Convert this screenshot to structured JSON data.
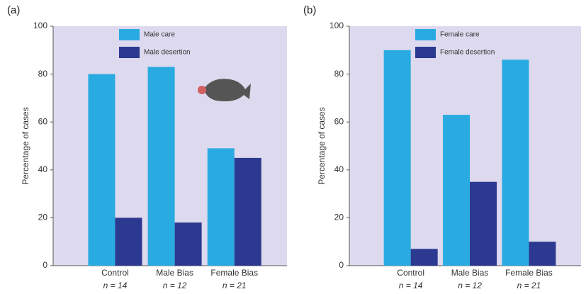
{
  "chart_data": [
    {
      "type": "bar",
      "panel_label": "(a)",
      "ylabel": "Percentage of cases",
      "categories": [
        "Control",
        "Male Bias",
        "Female Bias"
      ],
      "sample_sizes": [
        "n = 14",
        "n = 12",
        "n = 21"
      ],
      "series": [
        {
          "name": "Male care",
          "color": "#29abe2",
          "values": [
            80,
            83,
            49
          ]
        },
        {
          "name": "Male desertion",
          "color": "#2b3990",
          "values": [
            20,
            18,
            45
          ]
        }
      ],
      "ylim": [
        0,
        100
      ],
      "yticks": [
        0,
        20,
        40,
        60,
        80,
        100
      ]
    },
    {
      "type": "bar",
      "panel_label": "(b)",
      "ylabel": "Percentage of cases",
      "categories": [
        "Control",
        "Male Bias",
        "Female Bias"
      ],
      "sample_sizes": [
        "n = 14",
        "n = 12",
        "n = 21"
      ],
      "series": [
        {
          "name": "Female care",
          "color": "#29abe2",
          "values": [
            90,
            63,
            86
          ]
        },
        {
          "name": "Female desertion",
          "color": "#2b3990",
          "values": [
            7,
            35,
            10
          ]
        }
      ],
      "ylim": [
        0,
        100
      ],
      "yticks": [
        0,
        20,
        40,
        60,
        80,
        100
      ]
    }
  ]
}
